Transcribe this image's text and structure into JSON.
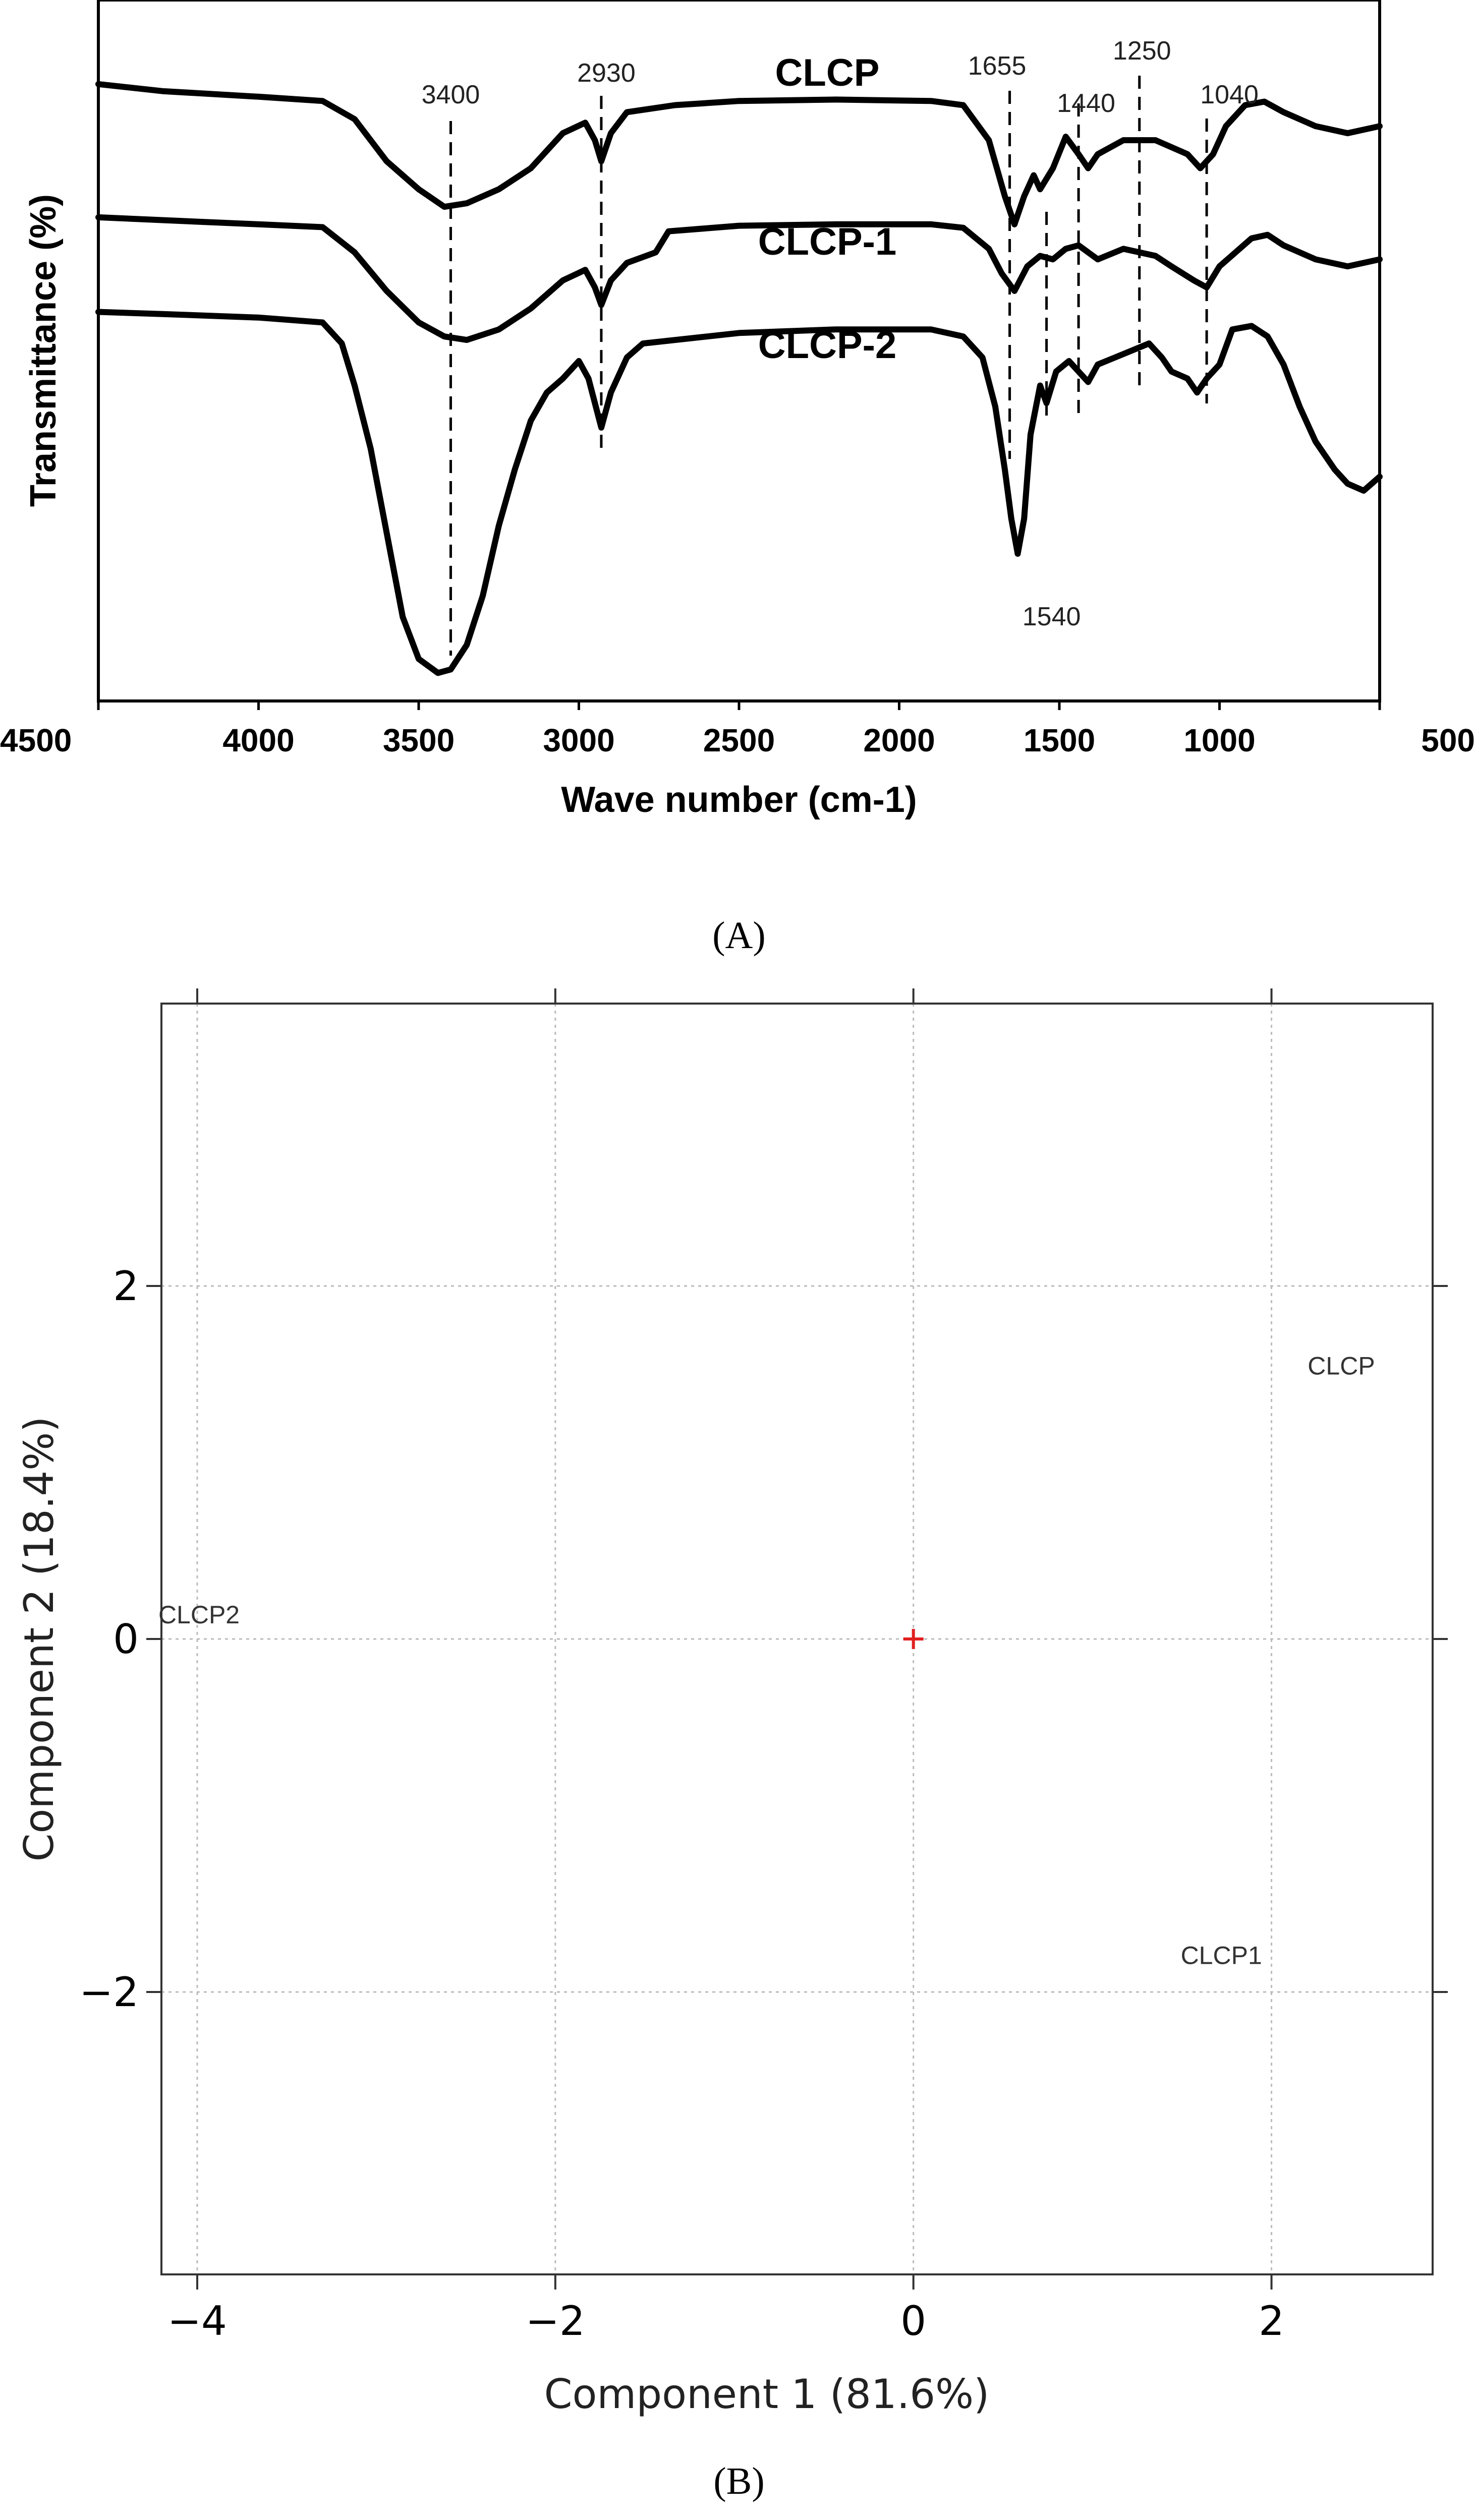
{
  "chart_data": [
    {
      "type": "line",
      "panel_label": "(A)",
      "xlabel": "Wave number (cm-1)",
      "ylabel": "Transmittance (%)",
      "xlim": [
        4500,
        500
      ],
      "x_reversed": true,
      "x_ticks": [
        4500,
        4000,
        3500,
        3000,
        2500,
        2000,
        1500,
        1000,
        500
      ],
      "y_ticks": [],
      "ylim": [
        0,
        100
      ],
      "grid": false,
      "series": [
        {
          "name": "CLCP",
          "points": [
            [
              4500,
              88
            ],
            [
              4300,
              87
            ],
            [
              4000,
              86.2
            ],
            [
              3800,
              85.6
            ],
            [
              3700,
              83
            ],
            [
              3600,
              77
            ],
            [
              3500,
              73
            ],
            [
              3420,
              70.5
            ],
            [
              3350,
              71
            ],
            [
              3250,
              73
            ],
            [
              3150,
              76
            ],
            [
              3050,
              81
            ],
            [
              2980,
              82.5
            ],
            [
              2950,
              80
            ],
            [
              2930,
              77
            ],
            [
              2900,
              81
            ],
            [
              2850,
              84
            ],
            [
              2700,
              85
            ],
            [
              2500,
              85.6
            ],
            [
              2200,
              85.8
            ],
            [
              1900,
              85.6
            ],
            [
              1800,
              85
            ],
            [
              1720,
              80
            ],
            [
              1670,
              72
            ],
            [
              1640,
              68
            ],
            [
              1610,
              72
            ],
            [
              1580,
              75
            ],
            [
              1560,
              73
            ],
            [
              1520,
              76
            ],
            [
              1480,
              80.5
            ],
            [
              1440,
              78
            ],
            [
              1410,
              76
            ],
            [
              1380,
              78
            ],
            [
              1300,
              80
            ],
            [
              1200,
              80
            ],
            [
              1150,
              79
            ],
            [
              1100,
              78
            ],
            [
              1060,
              76
            ],
            [
              1020,
              78
            ],
            [
              980,
              82
            ],
            [
              920,
              85
            ],
            [
              860,
              85.5
            ],
            [
              800,
              84
            ],
            [
              700,
              82
            ],
            [
              600,
              81
            ],
            [
              500,
              82
            ]
          ]
        },
        {
          "name": "CLCP-1",
          "points": [
            [
              4500,
              69
            ],
            [
              4300,
              68.6
            ],
            [
              4000,
              68
            ],
            [
              3800,
              67.6
            ],
            [
              3700,
              64
            ],
            [
              3600,
              58.5
            ],
            [
              3500,
              54
            ],
            [
              3420,
              52
            ],
            [
              3350,
              51.5
            ],
            [
              3250,
              53
            ],
            [
              3150,
              56
            ],
            [
              3050,
              60
            ],
            [
              2980,
              61.5
            ],
            [
              2950,
              59
            ],
            [
              2930,
              56.5
            ],
            [
              2900,
              60
            ],
            [
              2850,
              62.5
            ],
            [
              2760,
              64
            ],
            [
              2720,
              67
            ],
            [
              2500,
              67.8
            ],
            [
              2200,
              68
            ],
            [
              1900,
              68
            ],
            [
              1800,
              67.5
            ],
            [
              1720,
              64.5
            ],
            [
              1680,
              61
            ],
            [
              1640,
              58.5
            ],
            [
              1600,
              62
            ],
            [
              1560,
              63.5
            ],
            [
              1520,
              63
            ],
            [
              1480,
              64.5
            ],
            [
              1440,
              65
            ],
            [
              1380,
              63
            ],
            [
              1300,
              64.5
            ],
            [
              1200,
              63.5
            ],
            [
              1150,
              62
            ],
            [
              1080,
              60
            ],
            [
              1040,
              59
            ],
            [
              1000,
              62
            ],
            [
              950,
              64
            ],
            [
              900,
              66
            ],
            [
              850,
              66.5
            ],
            [
              800,
              65
            ],
            [
              700,
              63
            ],
            [
              600,
              62
            ],
            [
              500,
              63
            ]
          ]
        },
        {
          "name": "CLCP-2",
          "points": [
            [
              4500,
              55.5
            ],
            [
              4300,
              55.2
            ],
            [
              4000,
              54.7
            ],
            [
              3800,
              54
            ],
            [
              3740,
              51
            ],
            [
              3700,
              45
            ],
            [
              3650,
              36
            ],
            [
              3600,
              24
            ],
            [
              3550,
              12
            ],
            [
              3500,
              6
            ],
            [
              3440,
              4
            ],
            [
              3400,
              4.5
            ],
            [
              3350,
              8
            ],
            [
              3300,
              15
            ],
            [
              3250,
              25
            ],
            [
              3200,
              33
            ],
            [
              3150,
              40
            ],
            [
              3100,
              44
            ],
            [
              3050,
              46
            ],
            [
              3000,
              48.5
            ],
            [
              2970,
              46
            ],
            [
              2930,
              39
            ],
            [
              2900,
              44
            ],
            [
              2850,
              49
            ],
            [
              2800,
              51
            ],
            [
              2500,
              52.5
            ],
            [
              2200,
              53
            ],
            [
              1900,
              53
            ],
            [
              1800,
              52
            ],
            [
              1740,
              49
            ],
            [
              1700,
              42
            ],
            [
              1670,
              33
            ],
            [
              1650,
              26
            ],
            [
              1630,
              21
            ],
            [
              1610,
              26
            ],
            [
              1590,
              38
            ],
            [
              1560,
              45
            ],
            [
              1540,
              42.5
            ],
            [
              1510,
              47
            ],
            [
              1470,
              48.5
            ],
            [
              1440,
              47
            ],
            [
              1410,
              45.5
            ],
            [
              1380,
              48
            ],
            [
              1300,
              49.5
            ],
            [
              1220,
              51
            ],
            [
              1180,
              49
            ],
            [
              1150,
              47
            ],
            [
              1100,
              46
            ],
            [
              1070,
              44
            ],
            [
              1040,
              46
            ],
            [
              1000,
              48
            ],
            [
              960,
              53
            ],
            [
              900,
              53.5
            ],
            [
              850,
              52
            ],
            [
              800,
              48
            ],
            [
              750,
              42
            ],
            [
              700,
              37
            ],
            [
              640,
              33
            ],
            [
              600,
              31
            ],
            [
              550,
              30
            ],
            [
              500,
              32
            ]
          ]
        }
      ],
      "reference_lines": [
        {
          "x": 3400,
          "label": "3400"
        },
        {
          "x": 2930,
          "label": "2930"
        },
        {
          "x": 1655,
          "label": "1655"
        },
        {
          "x": 1540,
          "label": "1540"
        },
        {
          "x": 1440,
          "label": "1440"
        },
        {
          "x": 1250,
          "label": "1250"
        },
        {
          "x": 1040,
          "label": "1040"
        }
      ]
    },
    {
      "type": "scatter",
      "panel_label": "(B)",
      "xlabel": "Component 1 (81.6%)",
      "ylabel": "Component 2 (18.4%)",
      "xlim": [
        -4.2,
        2.9
      ],
      "ylim": [
        -3.6,
        3.6
      ],
      "x_ticks": [
        -4,
        -2,
        0,
        2
      ],
      "y_ticks": [
        -2,
        0,
        2
      ],
      "x_tick_labels": [
        "−4",
        "−2",
        "0",
        "2"
      ],
      "y_tick_labels": [
        "−2",
        "0",
        "2"
      ],
      "grid": true,
      "points": [
        {
          "label": "CLCP",
          "x": 2.39,
          "y": 1.55
        },
        {
          "label": "CLCP1",
          "x": 1.72,
          "y": -1.79
        },
        {
          "label": "CLCP2",
          "x": -3.99,
          "y": 0.14
        }
      ],
      "origin_marker": {
        "x": 0,
        "y": 0,
        "color": "#e02020"
      }
    }
  ]
}
